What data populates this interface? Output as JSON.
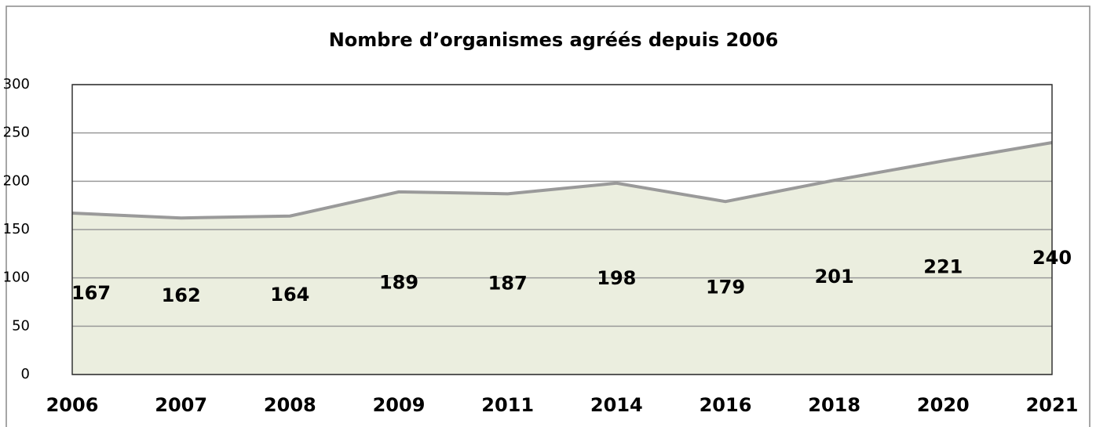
{
  "chart_data": {
    "type": "area",
    "title": "Nombre d’organismes agréés depuis 2006",
    "categories": [
      "2006",
      "2007",
      "2008",
      "2009",
      "2011",
      "2014",
      "2016",
      "2018",
      "2020",
      "2021"
    ],
    "values": [
      167,
      162,
      164,
      189,
      187,
      198,
      179,
      201,
      221,
      240
    ],
    "color": "#ebeedf",
    "line_color": "#9a9a9a",
    "ylim": [
      0,
      300
    ],
    "yticks": [
      0,
      50,
      100,
      150,
      200,
      250,
      300
    ],
    "grid": true
  }
}
